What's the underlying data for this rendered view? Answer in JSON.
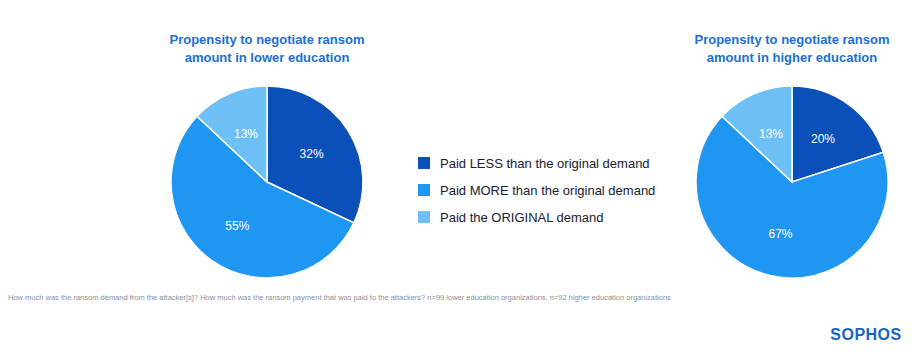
{
  "chart_data": [
    {
      "type": "pie",
      "title": "Propensity to negotiate ransom\namount in lower education",
      "categories": [
        "Paid LESS than the original demand",
        "Paid MORE than the original demand",
        "Paid the ORIGINAL demand"
      ],
      "values": [
        32,
        55,
        13
      ],
      "value_labels": [
        "32%",
        "55%",
        "13%"
      ],
      "colors": [
        "#0b4fb8",
        "#1f96f1",
        "#6cc0f6"
      ],
      "data_labels": true
    },
    {
      "type": "pie",
      "title": "Propensity to negotiate ransom\namount in higher education",
      "categories": [
        "Paid LESS than the original demand",
        "Paid MORE than the original demand",
        "Paid the ORIGINAL demand"
      ],
      "values": [
        20,
        67,
        13
      ],
      "value_labels": [
        "20%",
        "67%",
        "13%"
      ],
      "colors": [
        "#0b4fb8",
        "#1f96f1",
        "#6cc0f6"
      ],
      "data_labels": true
    }
  ],
  "note": "How much was the ransom demand from the attacker[s]? How much was the ransom payment that was paid to the attackers? n=99 lower education organizations, n=92 higher education organizations",
  "brand": "SOPHOS"
}
